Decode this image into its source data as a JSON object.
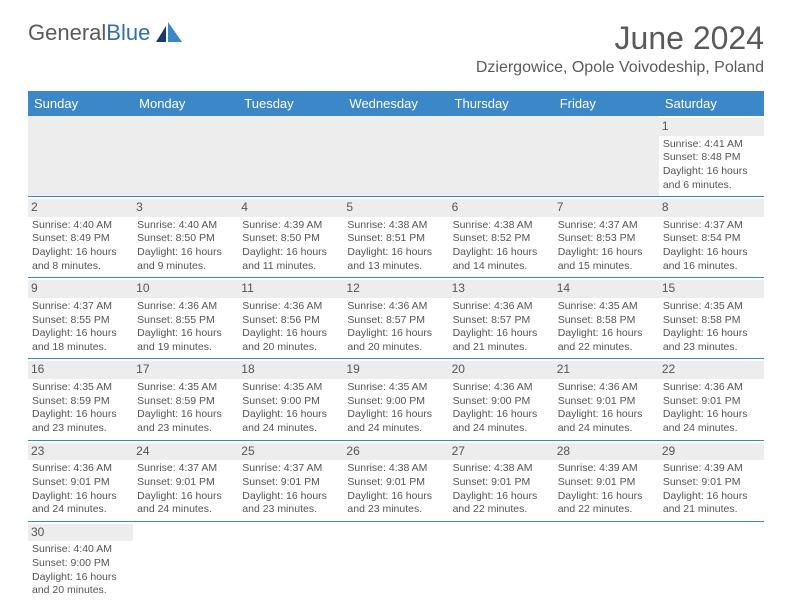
{
  "logo": {
    "text1": "General",
    "text2": "Blue"
  },
  "title": "June 2024",
  "location": "Dziergowice, Opole Voivodeship, Poland",
  "colors": {
    "header_bg": "#3b87c7",
    "header_text": "#ffffff",
    "daynum_bg": "#ededed",
    "border": "#3b87c7",
    "text": "#555555",
    "title_text": "#5a5a5a",
    "logo_blue": "#2f6fb0"
  },
  "weekdays": [
    "Sunday",
    "Monday",
    "Tuesday",
    "Wednesday",
    "Thursday",
    "Friday",
    "Saturday"
  ],
  "weeks": [
    [
      null,
      null,
      null,
      null,
      null,
      null,
      {
        "n": "1",
        "sr": "Sunrise: 4:41 AM",
        "ss": "Sunset: 8:48 PM",
        "d1": "Daylight: 16 hours",
        "d2": "and 6 minutes."
      }
    ],
    [
      {
        "n": "2",
        "sr": "Sunrise: 4:40 AM",
        "ss": "Sunset: 8:49 PM",
        "d1": "Daylight: 16 hours",
        "d2": "and 8 minutes."
      },
      {
        "n": "3",
        "sr": "Sunrise: 4:40 AM",
        "ss": "Sunset: 8:50 PM",
        "d1": "Daylight: 16 hours",
        "d2": "and 9 minutes."
      },
      {
        "n": "4",
        "sr": "Sunrise: 4:39 AM",
        "ss": "Sunset: 8:50 PM",
        "d1": "Daylight: 16 hours",
        "d2": "and 11 minutes."
      },
      {
        "n": "5",
        "sr": "Sunrise: 4:38 AM",
        "ss": "Sunset: 8:51 PM",
        "d1": "Daylight: 16 hours",
        "d2": "and 13 minutes."
      },
      {
        "n": "6",
        "sr": "Sunrise: 4:38 AM",
        "ss": "Sunset: 8:52 PM",
        "d1": "Daylight: 16 hours",
        "d2": "and 14 minutes."
      },
      {
        "n": "7",
        "sr": "Sunrise: 4:37 AM",
        "ss": "Sunset: 8:53 PM",
        "d1": "Daylight: 16 hours",
        "d2": "and 15 minutes."
      },
      {
        "n": "8",
        "sr": "Sunrise: 4:37 AM",
        "ss": "Sunset: 8:54 PM",
        "d1": "Daylight: 16 hours",
        "d2": "and 16 minutes."
      }
    ],
    [
      {
        "n": "9",
        "sr": "Sunrise: 4:37 AM",
        "ss": "Sunset: 8:55 PM",
        "d1": "Daylight: 16 hours",
        "d2": "and 18 minutes."
      },
      {
        "n": "10",
        "sr": "Sunrise: 4:36 AM",
        "ss": "Sunset: 8:55 PM",
        "d1": "Daylight: 16 hours",
        "d2": "and 19 minutes."
      },
      {
        "n": "11",
        "sr": "Sunrise: 4:36 AM",
        "ss": "Sunset: 8:56 PM",
        "d1": "Daylight: 16 hours",
        "d2": "and 20 minutes."
      },
      {
        "n": "12",
        "sr": "Sunrise: 4:36 AM",
        "ss": "Sunset: 8:57 PM",
        "d1": "Daylight: 16 hours",
        "d2": "and 20 minutes."
      },
      {
        "n": "13",
        "sr": "Sunrise: 4:36 AM",
        "ss": "Sunset: 8:57 PM",
        "d1": "Daylight: 16 hours",
        "d2": "and 21 minutes."
      },
      {
        "n": "14",
        "sr": "Sunrise: 4:35 AM",
        "ss": "Sunset: 8:58 PM",
        "d1": "Daylight: 16 hours",
        "d2": "and 22 minutes."
      },
      {
        "n": "15",
        "sr": "Sunrise: 4:35 AM",
        "ss": "Sunset: 8:58 PM",
        "d1": "Daylight: 16 hours",
        "d2": "and 23 minutes."
      }
    ],
    [
      {
        "n": "16",
        "sr": "Sunrise: 4:35 AM",
        "ss": "Sunset: 8:59 PM",
        "d1": "Daylight: 16 hours",
        "d2": "and 23 minutes."
      },
      {
        "n": "17",
        "sr": "Sunrise: 4:35 AM",
        "ss": "Sunset: 8:59 PM",
        "d1": "Daylight: 16 hours",
        "d2": "and 23 minutes."
      },
      {
        "n": "18",
        "sr": "Sunrise: 4:35 AM",
        "ss": "Sunset: 9:00 PM",
        "d1": "Daylight: 16 hours",
        "d2": "and 24 minutes."
      },
      {
        "n": "19",
        "sr": "Sunrise: 4:35 AM",
        "ss": "Sunset: 9:00 PM",
        "d1": "Daylight: 16 hours",
        "d2": "and 24 minutes."
      },
      {
        "n": "20",
        "sr": "Sunrise: 4:36 AM",
        "ss": "Sunset: 9:00 PM",
        "d1": "Daylight: 16 hours",
        "d2": "and 24 minutes."
      },
      {
        "n": "21",
        "sr": "Sunrise: 4:36 AM",
        "ss": "Sunset: 9:01 PM",
        "d1": "Daylight: 16 hours",
        "d2": "and 24 minutes."
      },
      {
        "n": "22",
        "sr": "Sunrise: 4:36 AM",
        "ss": "Sunset: 9:01 PM",
        "d1": "Daylight: 16 hours",
        "d2": "and 24 minutes."
      }
    ],
    [
      {
        "n": "23",
        "sr": "Sunrise: 4:36 AM",
        "ss": "Sunset: 9:01 PM",
        "d1": "Daylight: 16 hours",
        "d2": "and 24 minutes."
      },
      {
        "n": "24",
        "sr": "Sunrise: 4:37 AM",
        "ss": "Sunset: 9:01 PM",
        "d1": "Daylight: 16 hours",
        "d2": "and 24 minutes."
      },
      {
        "n": "25",
        "sr": "Sunrise: 4:37 AM",
        "ss": "Sunset: 9:01 PM",
        "d1": "Daylight: 16 hours",
        "d2": "and 23 minutes."
      },
      {
        "n": "26",
        "sr": "Sunrise: 4:38 AM",
        "ss": "Sunset: 9:01 PM",
        "d1": "Daylight: 16 hours",
        "d2": "and 23 minutes."
      },
      {
        "n": "27",
        "sr": "Sunrise: 4:38 AM",
        "ss": "Sunset: 9:01 PM",
        "d1": "Daylight: 16 hours",
        "d2": "and 22 minutes."
      },
      {
        "n": "28",
        "sr": "Sunrise: 4:39 AM",
        "ss": "Sunset: 9:01 PM",
        "d1": "Daylight: 16 hours",
        "d2": "and 22 minutes."
      },
      {
        "n": "29",
        "sr": "Sunrise: 4:39 AM",
        "ss": "Sunset: 9:01 PM",
        "d1": "Daylight: 16 hours",
        "d2": "and 21 minutes."
      }
    ],
    [
      {
        "n": "30",
        "sr": "Sunrise: 4:40 AM",
        "ss": "Sunset: 9:00 PM",
        "d1": "Daylight: 16 hours",
        "d2": "and 20 minutes."
      },
      null,
      null,
      null,
      null,
      null,
      null
    ]
  ]
}
